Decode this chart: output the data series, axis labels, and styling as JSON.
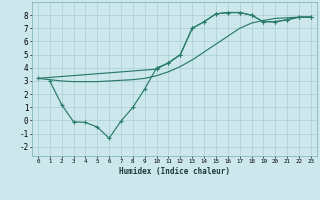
{
  "xlabel": "Humidex (Indice chaleur)",
  "ylabel": "",
  "bg_color": "#cce8ec",
  "grid_color": "#aacdd4",
  "line_color": "#2a7a6a",
  "xlim": [
    -0.5,
    23.5
  ],
  "ylim": [
    -2.7,
    9.0
  ],
  "xticks": [
    0,
    1,
    2,
    3,
    4,
    5,
    6,
    7,
    8,
    9,
    10,
    11,
    12,
    13,
    14,
    15,
    16,
    17,
    18,
    19,
    20,
    21,
    22,
    23
  ],
  "yticks": [
    -2,
    -1,
    0,
    1,
    2,
    3,
    4,
    5,
    6,
    7,
    8
  ],
  "line1_x": [
    0,
    1,
    2,
    3,
    4,
    5,
    6,
    7,
    8,
    9,
    10,
    11,
    12,
    13,
    14,
    15,
    16,
    17,
    18,
    19,
    20,
    21,
    22,
    23
  ],
  "line1_y": [
    3.2,
    3.1,
    3.0,
    2.95,
    2.95,
    2.95,
    3.0,
    3.05,
    3.1,
    3.2,
    3.4,
    3.7,
    4.1,
    4.6,
    5.2,
    5.8,
    6.4,
    7.0,
    7.4,
    7.6,
    7.75,
    7.8,
    7.85,
    7.85
  ],
  "line2_x": [
    0,
    10,
    11,
    12,
    13,
    14,
    15,
    16,
    17,
    18,
    19,
    20,
    21,
    22,
    23
  ],
  "line2_y": [
    3.2,
    3.9,
    4.4,
    5.0,
    7.0,
    7.5,
    8.1,
    8.2,
    8.2,
    8.0,
    7.5,
    7.5,
    7.65,
    7.85,
    7.85
  ],
  "line3_x": [
    1,
    2,
    3,
    4,
    5,
    6,
    7,
    8,
    9,
    10,
    11,
    12,
    13,
    14,
    15,
    16,
    17,
    18,
    19,
    20,
    21,
    22,
    23
  ],
  "line3_y": [
    3.0,
    1.2,
    -0.1,
    -0.15,
    -0.5,
    -1.35,
    -0.05,
    1.0,
    2.4,
    4.0,
    4.35,
    5.0,
    7.0,
    7.5,
    8.1,
    8.2,
    8.2,
    8.0,
    7.5,
    7.5,
    7.65,
    7.85,
    7.85
  ]
}
